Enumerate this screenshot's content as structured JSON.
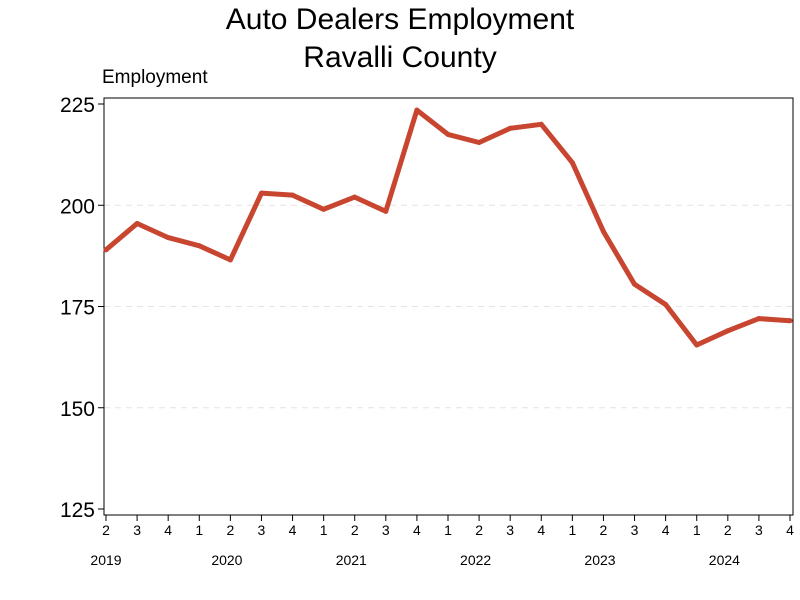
{
  "chart_data": {
    "type": "line",
    "title": "Auto Dealers Employment",
    "subtitle": "Ravalli County",
    "ylabel": "Employment",
    "xlabel": "",
    "ylim": [
      125,
      225
    ],
    "yticks": [
      125,
      150,
      175,
      200,
      225
    ],
    "grid": "horizontal dashed",
    "legend": "none",
    "line_color": "#c84630",
    "x": [
      "2019 Q2",
      "2019 Q3",
      "2019 Q4",
      "2020 Q1",
      "2020 Q2",
      "2020 Q3",
      "2020 Q4",
      "2021 Q1",
      "2021 Q2",
      "2021 Q3",
      "2021 Q4",
      "2022 Q1",
      "2022 Q2",
      "2022 Q3",
      "2022 Q4",
      "2023 Q1",
      "2023 Q2",
      "2023 Q3",
      "2023 Q4",
      "2024 Q1",
      "2024 Q2",
      "2024 Q3",
      "2024 Q4"
    ],
    "quarter_labels": [
      "2",
      "3",
      "4",
      "1",
      "2",
      "3",
      "4",
      "1",
      "2",
      "3",
      "4",
      "1",
      "2",
      "3",
      "4",
      "1",
      "2",
      "3",
      "4",
      "1",
      "2",
      "3",
      "4"
    ],
    "year_labels": [
      "2019",
      "2020",
      "2021",
      "2022",
      "2023",
      "2024"
    ],
    "values": [
      189,
      195.5,
      192,
      190,
      186.5,
      203,
      202.5,
      199,
      202,
      198.5,
      223.5,
      217.5,
      215.5,
      219,
      220,
      210.5,
      193.5,
      180.5,
      175.5,
      165.5,
      169,
      172,
      171.5
    ]
  }
}
